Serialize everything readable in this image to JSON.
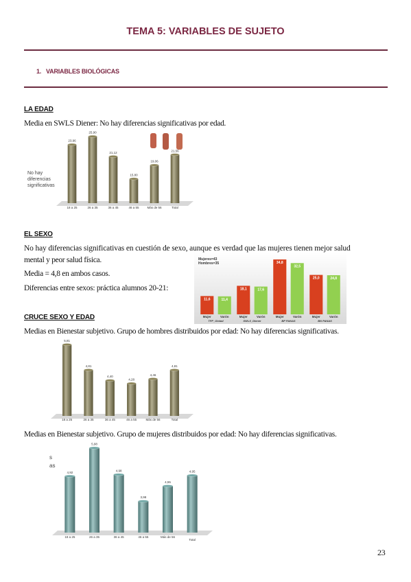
{
  "header": {
    "title": "TEMA 5: VARIABLES DE SUJETO"
  },
  "section": {
    "number": "1.",
    "title": "VARIABLES BIOLÓGICAS"
  },
  "edad": {
    "heading": "LA EDAD",
    "text": "Media en SWLS Diener: No hay diferencias significativas por edad."
  },
  "sexo": {
    "heading": "EL SEXO",
    "text_1": "No hay diferencias significativas en cuestión de sexo, aunque es verdad que las mujeres tienen mejor salud",
    "text_2": "mental y peor salud física.",
    "text_3": "Media = 4,8 en ambos casos.",
    "text_4": "Diferencias entre sexos: práctica alumnos 20-21:"
  },
  "cruce": {
    "heading": "CRUCE SEXO Y EDAD",
    "text_men": "Medias en Bienestar subjetivo. Grupo de hombres distribuidos por edad: No hay diferencias significativas.",
    "text_women": "Medias en Bienestar subjetivo. Grupo de mujeres distribuidos por edad: No hay diferencias significativas."
  },
  "page_number": "23",
  "chart_data": [
    {
      "type": "bar",
      "annotation": [
        "No hay",
        "diferencias",
        "significativas"
      ],
      "categories": [
        "18 a 25",
        "26 a 35",
        "36 a 45",
        "46 a 55",
        "Más de 56",
        "Total"
      ],
      "values": [
        23.96,
        25.9,
        21.12,
        15.8,
        19.06,
        21.56
      ],
      "value_labels": [
        "23,96",
        "25,90",
        "21,12",
        "15,80",
        "19,06",
        "21,56"
      ],
      "color": "#8c8457",
      "ylim": [
        10,
        27
      ]
    },
    {
      "type": "grouped_bar",
      "annotation": [
        "Mujeres=43",
        "Hombres=35"
      ],
      "categories": [
        "TFP_Global",
        "SWLS_Diener",
        "BP PANAS",
        "BN PANAS"
      ],
      "series": [
        {
          "name": "Mujer",
          "color": "#d8401f",
          "values": [
            11.6,
            18.1,
            34.8,
            25.0
          ],
          "value_labels": [
            "11,6",
            "18,1",
            "34,8",
            "25,0"
          ]
        },
        {
          "name": "Varón",
          "color": "#92d050",
          "values": [
            11.4,
            17.6,
            32.5,
            24.8
          ],
          "value_labels": [
            "11,4",
            "17,6",
            "32,5",
            "24,8"
          ]
        }
      ],
      "ylim": [
        0,
        37
      ]
    },
    {
      "type": "bar",
      "categories": [
        "18 a 25",
        "26 a 35",
        "36 a 45",
        "46 a 55",
        "Más de 56",
        "Total"
      ],
      "values": [
        5.81,
        4.81,
        4.4,
        4.28,
        4.46,
        4.81
      ],
      "value_labels": [
        "5,81",
        "4,81",
        "4,40",
        "4,28",
        "4,46",
        "4,81"
      ],
      "color": "#8c8457",
      "ylim": [
        3,
        6
      ]
    },
    {
      "type": "bar",
      "annotation": [
        "s",
        "as"
      ],
      "categories": [
        "18 a 25",
        "26 a 35",
        "36 a 45",
        "46 a 55",
        "Más de 56",
        "Total"
      ],
      "values": [
        4.92,
        5.98,
        4.98,
        3.98,
        4.55,
        4.95
      ],
      "value_labels": [
        "4,92",
        "5,98",
        "4,98",
        "3,98",
        "4,55",
        "4,95"
      ],
      "color": "#6fa7a5",
      "ylim": [
        2.8,
        6.1
      ]
    }
  ]
}
